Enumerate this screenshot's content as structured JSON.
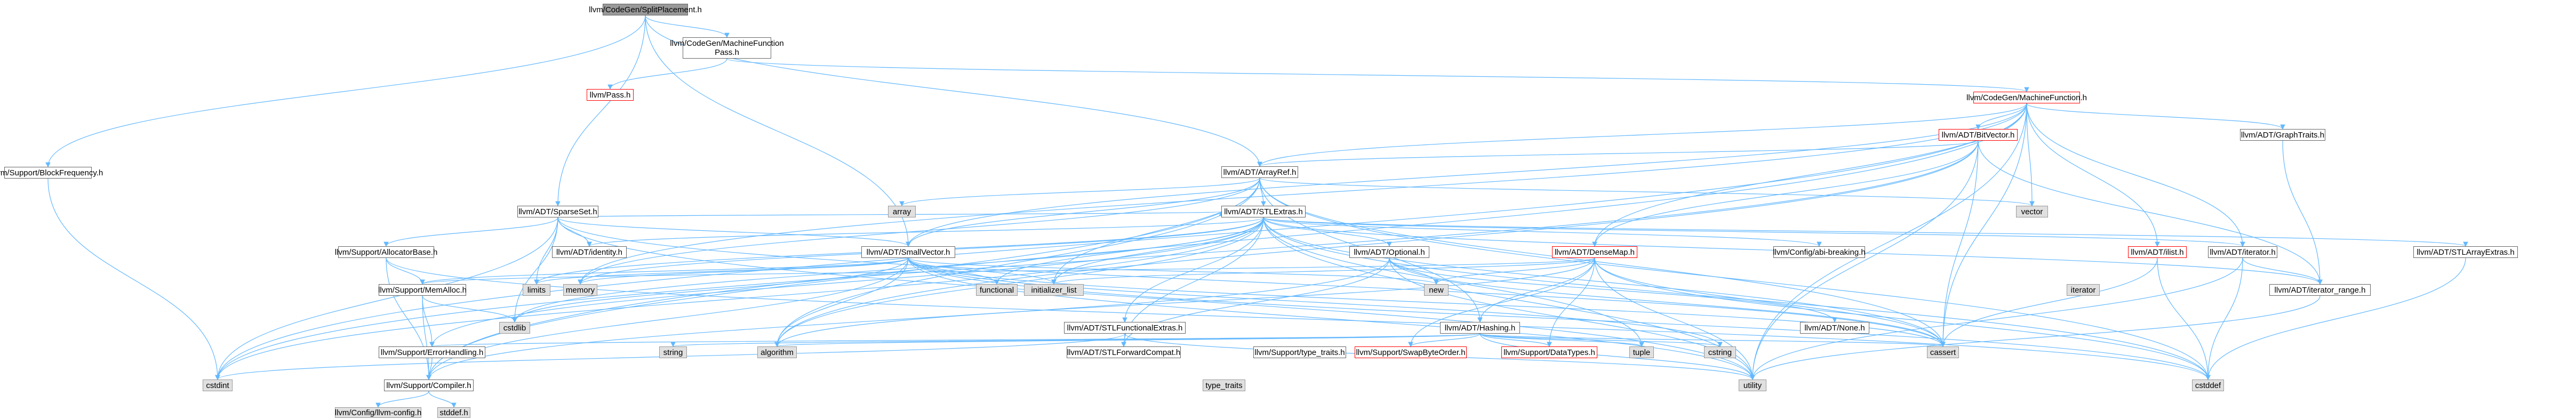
{
  "colors": {
    "edge": "#63b8ff",
    "root_fill": "#999999",
    "system_fill": "#e0e0e0",
    "truncated_border": "#ff0000",
    "node_border": "#666666"
  },
  "nodes": {
    "root": "llvm/CodeGen/SplitPlacement.h",
    "blockfreq": "llvm/Support/BlockFrequency.h",
    "mfpass": "llvm/CodeGen/MachineFunction\nPass.h",
    "pass": "llvm/Pass.h",
    "mf": "llvm/CodeGen/MachineFunction.h",
    "bitvector": "llvm/ADT/BitVector.h",
    "graphtraits": "llvm/ADT/GraphTraits.h",
    "arrayref": "llvm/ADT/ArrayRef.h",
    "sparseset": "llvm/ADT/SparseSet.h",
    "array": "array",
    "vector": "vector",
    "stlextras": "llvm/ADT/STLExtras.h",
    "configabi": "llvm/Config/abi-breaking.h",
    "ilist": "llvm/ADT/ilist.h",
    "iterator": "llvm/ADT/iterator.h",
    "stlarrayextras": "llvm/ADT/STLArrayExtras.h",
    "allocbase": "llvm/Support/AllocatorBase.h",
    "identity": "llvm/ADT/identity.h",
    "smallvector": "llvm/ADT/SmallVector.h",
    "optional": "llvm/ADT/Optional.h",
    "densemap": "llvm/ADT/DenseMap.h",
    "iterator_std": "iterator",
    "iterrange": "llvm/ADT/iterator_range.h",
    "memalloc": "llvm/Support/MemAlloc.h",
    "limits": "limits",
    "memory": "memory",
    "functional": "functional",
    "initlist": "initializer_list",
    "new": "new",
    "stlfunctional": "llvm/ADT/STLFunctionalExtras.h",
    "hashing": "llvm/ADT/Hashing.h",
    "none": "llvm/ADT/None.h",
    "errorhandling": "llvm/Support/ErrorHandling.h",
    "cstdlib": "cstdlib",
    "string": "string",
    "algorithm": "algorithm",
    "stlforward": "llvm/ADT/STLForwardCompat.h",
    "typetraits_llvm": "llvm/Support/type_traits.h",
    "swapbyteorder": "llvm/Support/SwapByteOrder.h",
    "datatypes": "llvm/Support/DataTypes.h",
    "tuple": "tuple",
    "cstring": "cstring",
    "cassert": "cassert",
    "cstdint": "cstdint",
    "compiler": "llvm/Support/Compiler.h",
    "type_traits": "type_traits",
    "utility": "utility",
    "cstddef": "cstddef",
    "llvmconfig": "llvm/Config/llvm-config.h",
    "stddef": "stddef.h"
  }
}
